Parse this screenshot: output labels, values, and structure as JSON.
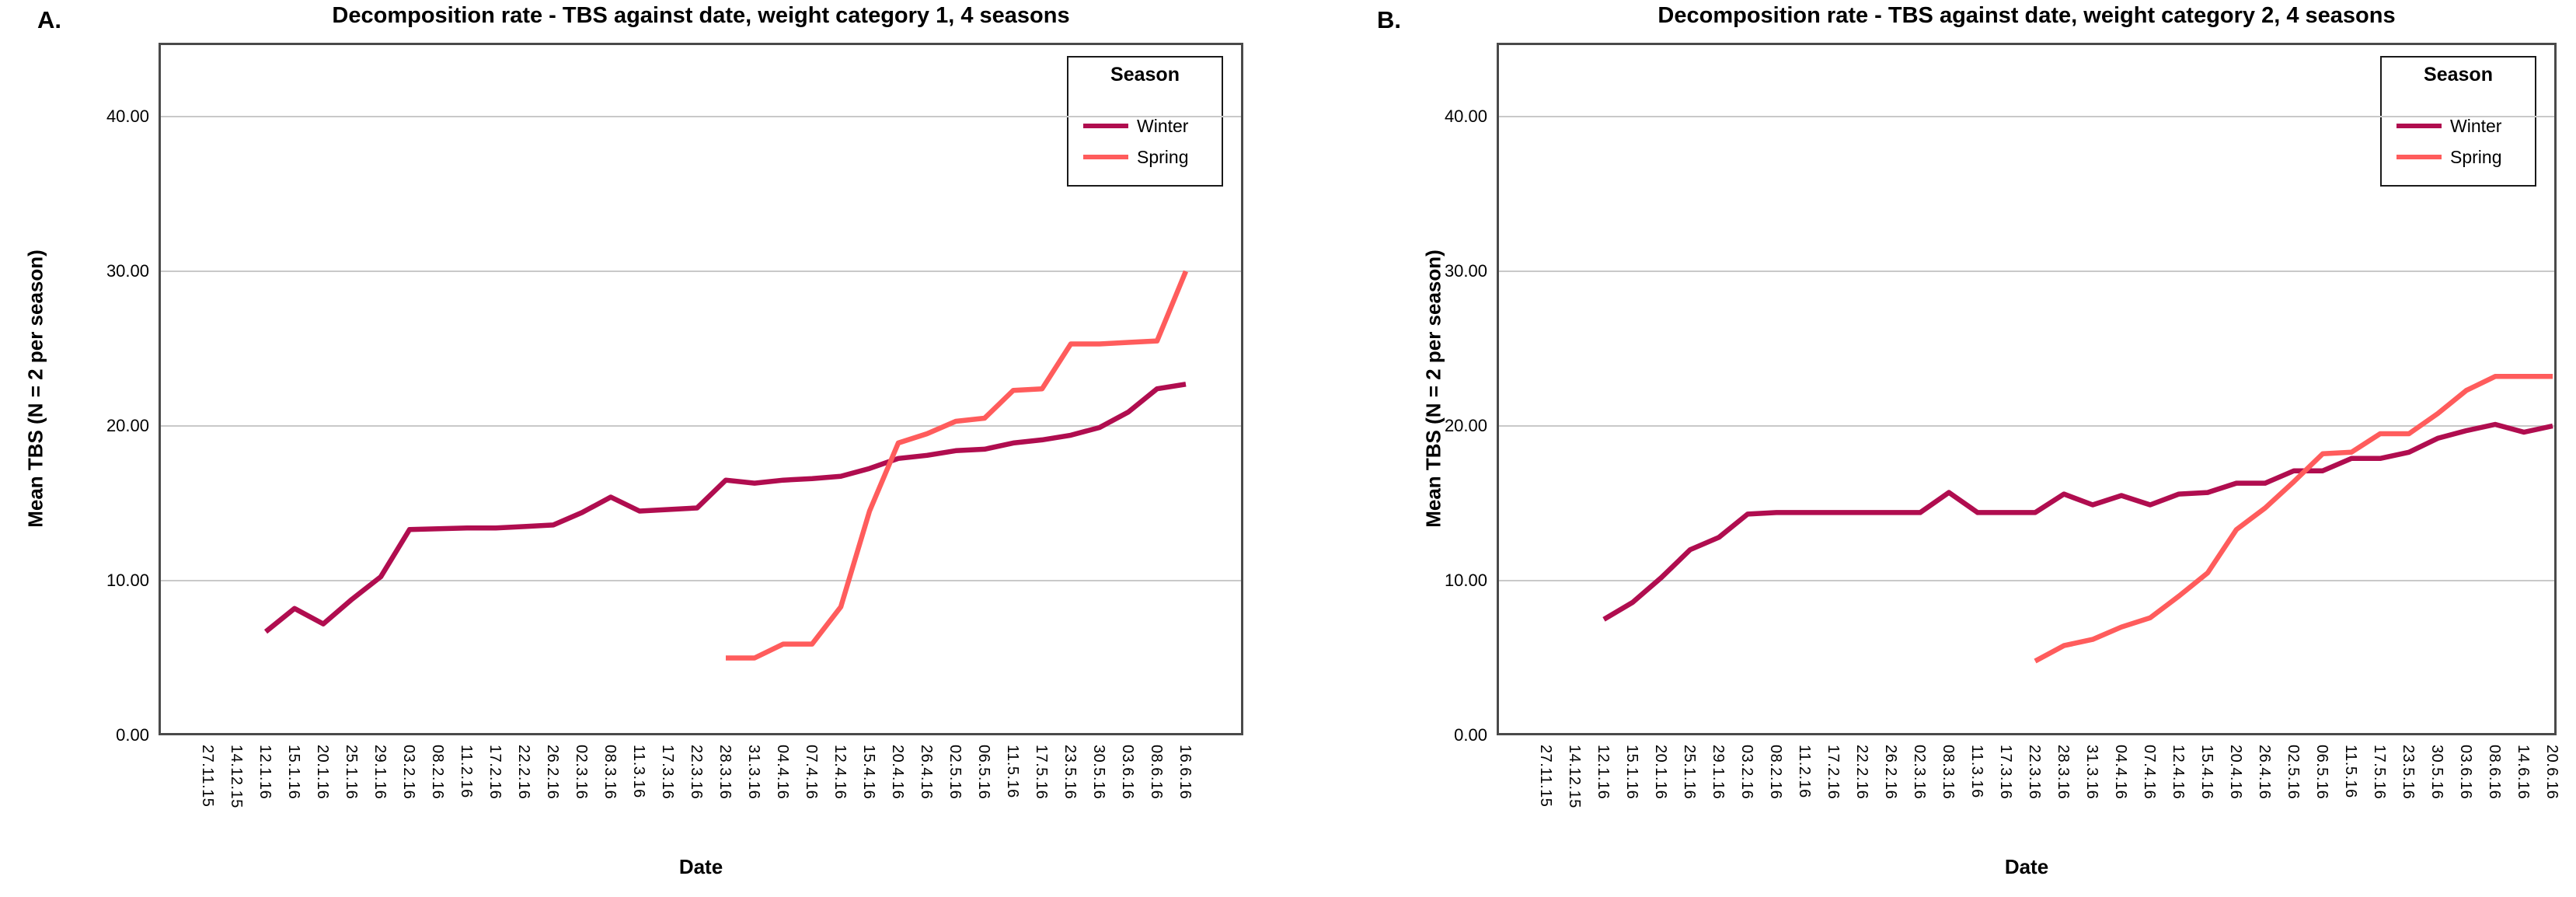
{
  "panels": [
    {
      "panel_letter": "A.",
      "title": "Decomposition rate - TBS against date, weight category 1, 4 seasons",
      "y_axis": {
        "label": "Mean TBS (N = 2 per season)",
        "ticks": [
          "0.00",
          "10.00",
          "20.00",
          "30.00",
          "40.00"
        ],
        "tick_values": [
          0,
          10,
          20,
          30,
          40
        ]
      },
      "x_axis": {
        "label": "Date"
      },
      "legend": {
        "title": "Season",
        "entries": [
          {
            "label": "Winter",
            "color": "#B00D4F"
          },
          {
            "label": "Spring",
            "color": "#FF5C5C"
          }
        ]
      }
    },
    {
      "panel_letter": "B.",
      "title": "Decomposition rate - TBS against date, weight category 2, 4 seasons",
      "y_axis": {
        "label": "Mean TBS (N = 2 per season)",
        "ticks": [
          "0.00",
          "10.00",
          "20.00",
          "30.00",
          "40.00"
        ],
        "tick_values": [
          0,
          10,
          20,
          30,
          40
        ]
      },
      "x_axis": {
        "label": "Date"
      },
      "legend": {
        "title": "Season",
        "entries": [
          {
            "label": "Winter",
            "color": "#B00D4F"
          },
          {
            "label": "Spring",
            "color": "#FF5C5C"
          }
        ]
      }
    }
  ],
  "chart_data": [
    {
      "type": "line",
      "title": "Decomposition rate - TBS against date, weight category 1, 4 seasons",
      "xlabel": "Date",
      "ylabel": "Mean TBS (N = 2 per season)",
      "ylim": [
        0,
        44.8
      ],
      "grid": true,
      "legend_position": "top-right",
      "categories": [
        "27.11.15",
        "14.12.15",
        "12.1.16",
        "15.1.16",
        "20.1.16",
        "25.1.16",
        "29.1.16",
        "03.2.16",
        "08.2.16",
        "11.2.16",
        "17.2.16",
        "22.2.16",
        "26.2.16",
        "02.3.16",
        "08.3.16",
        "11.3.16",
        "17.3.16",
        "22.3.16",
        "28.3.16",
        "31.3.16",
        "04.4.16",
        "07.4.16",
        "12.4.16",
        "15.4.16",
        "20.4.16",
        "26.4.16",
        "02.5.16",
        "06.5.16",
        "11.5.16",
        "17.5.16",
        "23.5.16",
        "30.5.16",
        "03.6.16",
        "08.6.16",
        "16.6.16"
      ],
      "series": [
        {
          "name": "Winter",
          "color": "#B00D4F",
          "values": [
            null,
            null,
            6.7,
            8.2,
            7.2,
            8.8,
            10.25,
            13.3,
            13.35,
            13.4,
            13.4,
            13.5,
            13.6,
            14.4,
            15.4,
            14.5,
            14.6,
            14.7,
            16.5,
            16.3,
            16.5,
            16.6,
            16.75,
            17.25,
            17.9,
            18.1,
            18.4,
            18.5,
            18.9,
            19.1,
            19.4,
            19.9,
            20.9,
            22.4,
            22.7
          ]
        },
        {
          "name": "Spring",
          "color": "#FF5C5C",
          "values": [
            null,
            null,
            null,
            null,
            null,
            null,
            null,
            null,
            null,
            null,
            null,
            null,
            null,
            null,
            null,
            null,
            null,
            null,
            5.0,
            5.0,
            5.9,
            5.9,
            8.3,
            14.5,
            18.9,
            19.5,
            20.3,
            20.5,
            22.3,
            22.4,
            25.3,
            25.3,
            25.4,
            25.5,
            30.0
          ]
        }
      ]
    },
    {
      "type": "line",
      "title": "Decomposition rate - TBS against date, weight category 2, 4 seasons",
      "xlabel": "Date",
      "ylabel": "Mean TBS (N = 2 per season)",
      "ylim": [
        0,
        44.8
      ],
      "grid": true,
      "legend_position": "top-right",
      "categories": [
        "27.11.15",
        "14.12.15",
        "12.1.16",
        "15.1.16",
        "20.1.16",
        "25.1.16",
        "29.1.16",
        "03.2.16",
        "08.2.16",
        "11.2.16",
        "17.2.16",
        "22.2.16",
        "26.2.16",
        "02.3.16",
        "08.3.16",
        "11.3.16",
        "17.3.16",
        "22.3.16",
        "28.3.16",
        "31.3.16",
        "04.4.16",
        "07.4.16",
        "12.4.16",
        "15.4.16",
        "20.4.16",
        "26.4.16",
        "02.5.16",
        "06.5.16",
        "11.5.16",
        "17.5.16",
        "23.5.16",
        "30.5.16",
        "03.6.16",
        "08.6.16",
        "14.6.16",
        "20.6.16"
      ],
      "series": [
        {
          "name": "Winter",
          "color": "#B00D4F",
          "values": [
            null,
            null,
            7.5,
            8.6,
            10.2,
            12.0,
            12.8,
            14.3,
            14.4,
            14.4,
            14.4,
            14.4,
            14.4,
            14.4,
            15.7,
            14.4,
            14.4,
            14.4,
            15.6,
            14.9,
            15.5,
            14.9,
            15.6,
            15.7,
            16.3,
            16.3,
            17.1,
            17.1,
            17.9,
            17.9,
            18.3,
            19.2,
            19.7,
            20.1,
            19.6,
            20.0
          ]
        },
        {
          "name": "Spring",
          "color": "#FF5C5C",
          "values": [
            null,
            null,
            null,
            null,
            null,
            null,
            null,
            null,
            null,
            null,
            null,
            null,
            null,
            null,
            null,
            null,
            null,
            4.8,
            5.8,
            6.2,
            7.0,
            7.6,
            9.0,
            10.5,
            13.3,
            14.7,
            16.4,
            18.2,
            18.3,
            19.5,
            19.5,
            20.8,
            22.3,
            23.2,
            23.2,
            23.2
          ]
        }
      ]
    }
  ]
}
